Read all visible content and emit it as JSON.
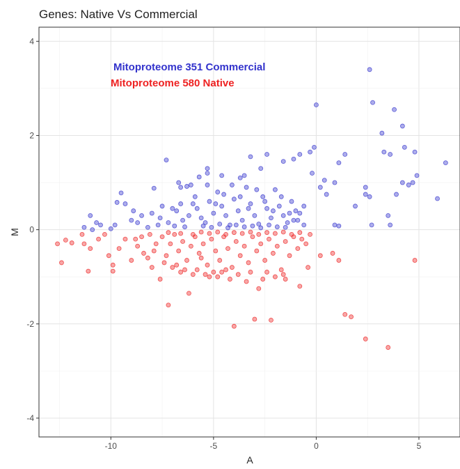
{
  "chart_data": {
    "type": "scatter",
    "title": "Genes: Native Vs Commercial",
    "xlabel": "A",
    "ylabel": "M",
    "xlim": [
      -13.5,
      7
    ],
    "ylim": [
      -4.4,
      4.3
    ],
    "xticks": [
      -10,
      -5,
      0,
      5
    ],
    "yticks": [
      -4,
      -2,
      0,
      2,
      4
    ],
    "grid": true,
    "legend": "top-left (inside plot)",
    "series": [
      {
        "name": "Mitoproteome 351 Commercial",
        "color": "#3333cc",
        "points": [
          [
            2.6,
            3.4
          ],
          [
            2.75,
            2.7
          ],
          [
            3.8,
            2.55
          ],
          [
            4.2,
            2.2
          ],
          [
            0,
            2.65
          ],
          [
            3.2,
            2.05
          ],
          [
            3.3,
            1.65
          ],
          [
            3.6,
            1.6
          ],
          [
            4.3,
            1.75
          ],
          [
            4.8,
            1.65
          ],
          [
            6.3,
            1.42
          ],
          [
            5.9,
            0.66
          ],
          [
            4.9,
            1.15
          ],
          [
            4.7,
            1.0
          ],
          [
            4.2,
            1.0
          ],
          [
            3.9,
            0.75
          ],
          [
            3.5,
            0.3
          ],
          [
            3.6,
            0.1
          ],
          [
            4.5,
            0.95
          ],
          [
            2.4,
            0.9
          ],
          [
            2.6,
            0.7
          ],
          [
            2.4,
            0.75
          ],
          [
            2.7,
            0.1
          ],
          [
            1.9,
            0.5
          ],
          [
            1.4,
            1.6
          ],
          [
            1.1,
            1.42
          ],
          [
            0.9,
            1.0
          ],
          [
            0.4,
            1.05
          ],
          [
            0.5,
            0.75
          ],
          [
            0.2,
            0.9
          ],
          [
            0.9,
            0.1
          ],
          [
            1.1,
            0.08
          ],
          [
            -0.8,
            1.6
          ],
          [
            -0.3,
            1.65
          ],
          [
            -0.1,
            1.75
          ],
          [
            -0.2,
            1.2
          ],
          [
            -0.6,
            0.5
          ],
          [
            -0.8,
            0.35
          ],
          [
            -1.1,
            0.2
          ],
          [
            -0.6,
            0.1
          ],
          [
            -1.1,
            1.5
          ],
          [
            -1.6,
            1.45
          ],
          [
            -2.4,
            1.6
          ],
          [
            -3.2,
            1.55
          ],
          [
            -2.7,
            1.3
          ],
          [
            -3.5,
            1.15
          ],
          [
            -3.7,
            1.1
          ],
          [
            -4.6,
            1.15
          ],
          [
            -5.3,
            1.3
          ],
          [
            -5.3,
            1.2
          ],
          [
            -5.7,
            1.12
          ],
          [
            -6.1,
            0.95
          ],
          [
            -6.3,
            0.92
          ],
          [
            -6.7,
            1.0
          ],
          [
            -6.6,
            0.9
          ],
          [
            -7.3,
            1.48
          ],
          [
            -7.5,
            0.5
          ],
          [
            -7.9,
            0.88
          ],
          [
            -8.9,
            0.4
          ],
          [
            -9.3,
            0.55
          ],
          [
            -9.7,
            0.58
          ],
          [
            -9.5,
            0.78
          ],
          [
            -10.0,
            0.02
          ],
          [
            -10.7,
            0.15
          ],
          [
            -10.5,
            0.1
          ],
          [
            -11.0,
            0.3
          ],
          [
            -11.3,
            0.05
          ],
          [
            -10.9,
            0.0
          ],
          [
            -9.0,
            0.2
          ],
          [
            -8.5,
            0.3
          ],
          [
            -8.0,
            0.35
          ],
          [
            -7.6,
            0.25
          ],
          [
            -7.2,
            0.15
          ],
          [
            -6.8,
            0.4
          ],
          [
            -6.5,
            0.2
          ],
          [
            -6.2,
            0.3
          ],
          [
            -6.0,
            0.55
          ],
          [
            -5.8,
            0.45
          ],
          [
            -5.6,
            0.25
          ],
          [
            -5.4,
            0.15
          ],
          [
            -5.2,
            0.6
          ],
          [
            -5.0,
            0.35
          ],
          [
            -4.8,
            0.8
          ],
          [
            -4.6,
            0.5
          ],
          [
            -4.4,
            0.3
          ],
          [
            -4.2,
            0.1
          ],
          [
            -4.0,
            0.65
          ],
          [
            -3.8,
            0.4
          ],
          [
            -3.6,
            0.2
          ],
          [
            -3.4,
            0.9
          ],
          [
            -3.2,
            0.55
          ],
          [
            -3.0,
            0.3
          ],
          [
            -2.8,
            0.12
          ],
          [
            -2.6,
            0.7
          ],
          [
            -2.4,
            0.45
          ],
          [
            -2.2,
            0.25
          ],
          [
            -2.0,
            0.85
          ],
          [
            -1.8,
            0.5
          ],
          [
            -1.6,
            0.3
          ],
          [
            -1.4,
            0.15
          ],
          [
            -1.2,
            0.6
          ],
          [
            -1.0,
            0.4
          ],
          [
            -5.5,
            0.08
          ],
          [
            -5.1,
            0.05
          ],
          [
            -4.7,
            0.12
          ],
          [
            -4.3,
            0.04
          ],
          [
            -3.9,
            0.1
          ],
          [
            -3.5,
            0.06
          ],
          [
            -3.1,
            0.08
          ],
          [
            -2.7,
            0.04
          ],
          [
            -2.3,
            0.1
          ],
          [
            -1.9,
            0.06
          ],
          [
            -1.5,
            0.05
          ],
          [
            -6.4,
            0.06
          ],
          [
            -6.9,
            0.08
          ],
          [
            -7.7,
            0.1
          ],
          [
            -8.2,
            0.05
          ],
          [
            -5.9,
            0.7
          ],
          [
            -5.3,
            0.95
          ],
          [
            -4.9,
            0.55
          ],
          [
            -4.5,
            0.75
          ],
          [
            -4.1,
            0.95
          ],
          [
            -3.7,
            0.7
          ],
          [
            -3.3,
            0.45
          ],
          [
            -2.9,
            0.85
          ],
          [
            -2.5,
            0.6
          ],
          [
            -2.1,
            0.4
          ],
          [
            -1.7,
            0.7
          ],
          [
            -1.3,
            0.35
          ],
          [
            -0.9,
            0.2
          ],
          [
            -6.6,
            0.55
          ],
          [
            -7.0,
            0.45
          ],
          [
            -8.7,
            0.15
          ],
          [
            -9.8,
            0.1
          ]
        ]
      },
      {
        "name": "Mitoproteome 580 Native",
        "color": "#ee2222",
        "points": [
          [
            -12.6,
            -0.3
          ],
          [
            -12.4,
            -0.7
          ],
          [
            -12.2,
            -0.22
          ],
          [
            -11.9,
            -0.28
          ],
          [
            -11.4,
            -0.1
          ],
          [
            -11.3,
            -0.3
          ],
          [
            -11.1,
            -0.88
          ],
          [
            -11.0,
            -0.4
          ],
          [
            -10.6,
            -0.2
          ],
          [
            -10.3,
            -0.1
          ],
          [
            -10.1,
            -0.55
          ],
          [
            -9.9,
            -0.75
          ],
          [
            -9.9,
            -0.88
          ],
          [
            -9.6,
            -0.4
          ],
          [
            -9.3,
            -0.2
          ],
          [
            -9.0,
            -0.65
          ],
          [
            -8.7,
            -0.35
          ],
          [
            -8.4,
            -0.5
          ],
          [
            -8.1,
            -0.1
          ],
          [
            -7.8,
            -0.3
          ],
          [
            -7.6,
            -1.05
          ],
          [
            -7.2,
            -1.6
          ],
          [
            -7.0,
            -0.8
          ],
          [
            -6.6,
            -0.9
          ],
          [
            -6.2,
            -1.35
          ],
          [
            -6.0,
            -0.95
          ],
          [
            -5.6,
            -0.6
          ],
          [
            -5.2,
            -1.0
          ],
          [
            -4.6,
            -0.9
          ],
          [
            -4.0,
            -2.05
          ],
          [
            -3.0,
            -1.9
          ],
          [
            -2.8,
            -1.25
          ],
          [
            -2.2,
            -1.92
          ],
          [
            -1.5,
            -1.05
          ],
          [
            -0.8,
            -1.2
          ],
          [
            -0.4,
            -0.8
          ],
          [
            0.2,
            -0.55
          ],
          [
            0.8,
            -0.5
          ],
          [
            1.1,
            -0.65
          ],
          [
            1.4,
            -1.8
          ],
          [
            1.7,
            -1.85
          ],
          [
            2.4,
            -2.32
          ],
          [
            3.5,
            -2.5
          ],
          [
            4.8,
            -0.65
          ],
          [
            -8.8,
            -0.2
          ],
          [
            -8.5,
            -0.15
          ],
          [
            -8.2,
            -0.6
          ],
          [
            -7.9,
            -0.45
          ],
          [
            -7.5,
            -0.15
          ],
          [
            -7.3,
            -0.55
          ],
          [
            -7.1,
            -0.3
          ],
          [
            -6.9,
            -0.1
          ],
          [
            -6.7,
            -0.45
          ],
          [
            -6.5,
            -0.25
          ],
          [
            -6.3,
            -0.65
          ],
          [
            -6.1,
            -0.35
          ],
          [
            -5.9,
            -0.15
          ],
          [
            -5.7,
            -0.5
          ],
          [
            -5.5,
            -0.3
          ],
          [
            -5.3,
            -0.75
          ],
          [
            -5.1,
            -0.2
          ],
          [
            -4.9,
            -0.45
          ],
          [
            -4.7,
            -0.65
          ],
          [
            -4.5,
            -0.15
          ],
          [
            -4.3,
            -0.4
          ],
          [
            -4.1,
            -0.8
          ],
          [
            -3.9,
            -0.25
          ],
          [
            -3.7,
            -0.55
          ],
          [
            -3.5,
            -0.35
          ],
          [
            -3.3,
            -0.7
          ],
          [
            -3.1,
            -0.15
          ],
          [
            -2.9,
            -0.45
          ],
          [
            -2.7,
            -0.3
          ],
          [
            -2.5,
            -0.65
          ],
          [
            -2.3,
            -0.2
          ],
          [
            -2.1,
            -0.5
          ],
          [
            -1.9,
            -0.35
          ],
          [
            -1.7,
            -0.85
          ],
          [
            -1.5,
            -0.25
          ],
          [
            -1.3,
            -0.55
          ],
          [
            -1.1,
            -0.15
          ],
          [
            -0.9,
            -0.4
          ],
          [
            -0.7,
            -0.2
          ],
          [
            -0.5,
            -0.3
          ],
          [
            -0.3,
            -0.1
          ],
          [
            -5.8,
            -0.85
          ],
          [
            -5.4,
            -0.95
          ],
          [
            -5.0,
            -0.9
          ],
          [
            -4.8,
            -1.0
          ],
          [
            -4.4,
            -0.85
          ],
          [
            -4.2,
            -1.05
          ],
          [
            -3.8,
            -0.95
          ],
          [
            -3.4,
            -1.1
          ],
          [
            -3.2,
            -0.9
          ],
          [
            -2.6,
            -1.05
          ],
          [
            -2.4,
            -0.9
          ],
          [
            -2.0,
            -1.0
          ],
          [
            -1.6,
            -0.95
          ],
          [
            -6.8,
            -0.75
          ],
          [
            -6.4,
            -0.85
          ],
          [
            -7.4,
            -0.7
          ],
          [
            -8.0,
            -0.8
          ],
          [
            -5.6,
            -0.05
          ],
          [
            -5.2,
            -0.08
          ],
          [
            -4.8,
            -0.05
          ],
          [
            -4.4,
            -0.1
          ],
          [
            -4.0,
            -0.06
          ],
          [
            -3.6,
            -0.08
          ],
          [
            -3.2,
            -0.05
          ],
          [
            -2.8,
            -0.1
          ],
          [
            -2.4,
            -0.06
          ],
          [
            -2.0,
            -0.08
          ],
          [
            -1.6,
            -0.05
          ],
          [
            -1.2,
            -0.1
          ],
          [
            -0.8,
            -0.06
          ],
          [
            -6.0,
            -0.1
          ],
          [
            -6.6,
            -0.08
          ],
          [
            -7.2,
            -0.06
          ]
        ]
      }
    ]
  }
}
